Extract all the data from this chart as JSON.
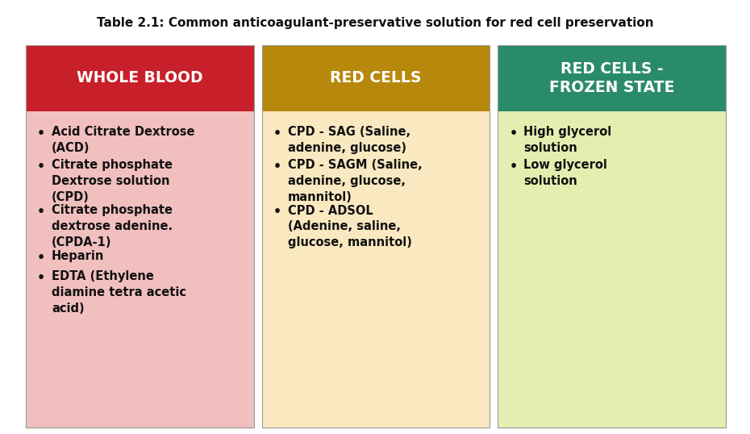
{
  "title": "Table 2.1: Common anticoagulant-preservative solution for red cell preservation",
  "title_fontsize": 11,
  "columns": [
    {
      "header": "WHOLE BLOOD",
      "header_bg": "#C8202A",
      "body_bg": "#F2BFBF",
      "header_text_color": "#FFFFFF",
      "items": [
        "Acid Citrate Dextrose\n(ACD)",
        "Citrate phosphate\nDextrose solution\n(CPD)",
        "Citrate phosphate\ndextrose adenine.\n(CPDA-1)",
        "Heparin",
        "EDTA (Ethylene\ndiamine tetra acetic\nacid)"
      ]
    },
    {
      "header": "RED CELLS",
      "header_bg": "#B8880C",
      "body_bg": "#FAE8C0",
      "header_text_color": "#FFFFFF",
      "items": [
        "CPD - SAG (Saline,\nadenine, glucose)",
        "CPD - SAGM (Saline,\nadenine, glucose,\nmannitol)",
        "CPD - ADSOL\n(Adenine, saline,\nglucose, mannitol)"
      ]
    },
    {
      "header": "RED CELLS -\nFROZEN STATE",
      "header_bg": "#2A8B6A",
      "body_bg": "#E4EEB0",
      "header_text_color": "#FFFFFF",
      "items": [
        "High glycerol\nsolution",
        "Low glycerol\nsolution"
      ]
    }
  ],
  "body_text_color": "#111111",
  "item_fontsize": 10.5,
  "header_fontsize": 13.5,
  "background_color": "#FFFFFF"
}
